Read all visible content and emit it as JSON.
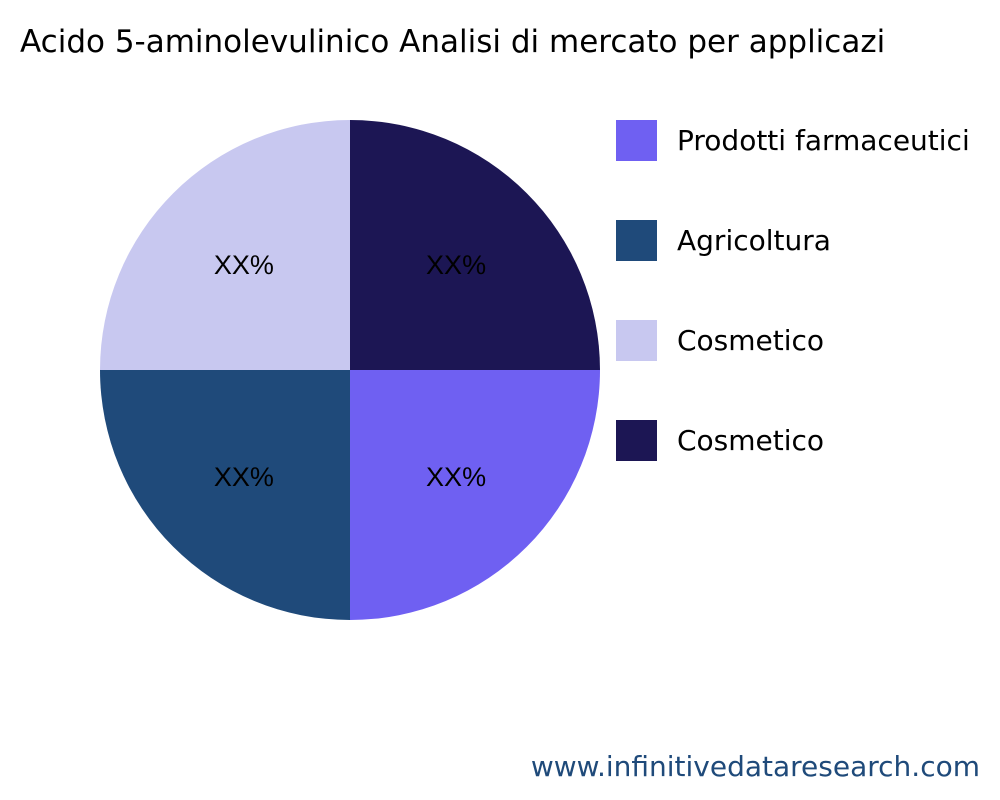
{
  "chart_data": {
    "type": "pie",
    "title": "Acido 5-aminolevulinico Analisi di mercato per applicazi",
    "slices": [
      {
        "label": "Prodotti farmaceutici",
        "value": 25,
        "display": "XX%",
        "color": "#6f60f2"
      },
      {
        "label": "Agricoltura",
        "value": 25,
        "display": "XX%",
        "color": "#1f4a7a"
      },
      {
        "label": "Cosmetico",
        "value": 25,
        "display": "XX%",
        "color": "#c8c8f0"
      },
      {
        "label": "Cosmetico",
        "value": 25,
        "display": "XX%",
        "color": "#1c1654"
      }
    ],
    "legend_position": "right"
  },
  "footer": "www.infinitivedataresearch.com"
}
